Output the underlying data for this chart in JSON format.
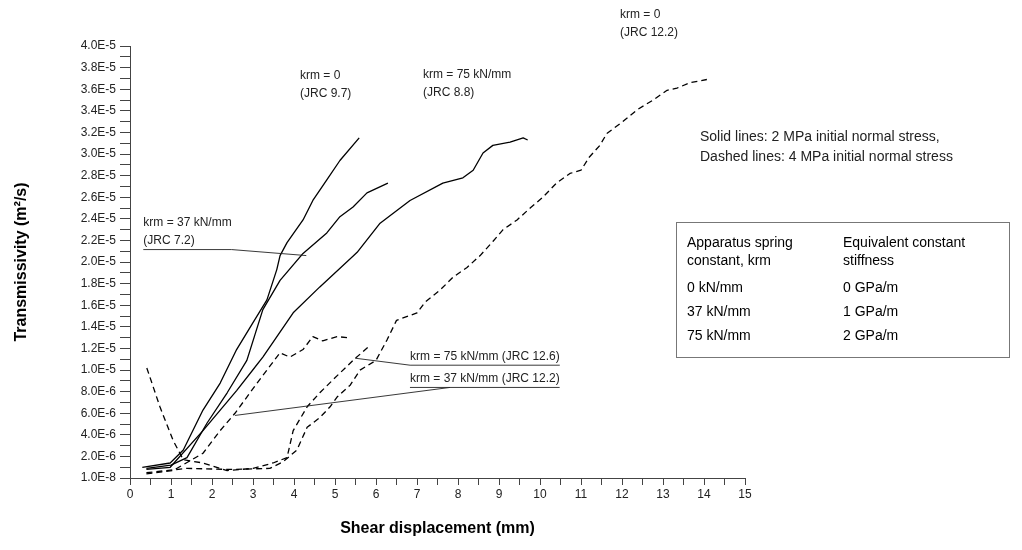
{
  "chart_data": {
    "type": "line",
    "xlabel": "Shear displacement (mm)",
    "ylabel": "Transmissivity (m²/s)",
    "xlim": [
      0,
      15
    ],
    "xticks": [
      0,
      {
        "value": 0.5,
        "label": null
      },
      1,
      {
        "value": 1.5,
        "label": null
      },
      2,
      {
        "value": 2.5,
        "label": null
      },
      3,
      {
        "value": 3.5,
        "label": null
      },
      4,
      {
        "value": 4.5,
        "label": null
      },
      5,
      {
        "value": 5.5,
        "label": null
      },
      6,
      {
        "value": 6.5,
        "label": null
      },
      7,
      {
        "value": 7.5,
        "label": null
      },
      8,
      {
        "value": 8.5,
        "label": null
      },
      9,
      {
        "value": 9.5,
        "label": null
      },
      10,
      {
        "value": 10.5,
        "label": null
      },
      11,
      {
        "value": 11.5,
        "label": null
      },
      12,
      {
        "value": 12.5,
        "label": null
      },
      13,
      {
        "value": 13.5,
        "label": null
      },
      14,
      {
        "value": 14.5,
        "label": null
      },
      15
    ],
    "ylim": [
      1e-08,
      4e-05
    ],
    "yticks": [
      {
        "value": 1e-08,
        "label": "1.0E-8"
      },
      {
        "value": 1e-06,
        "label": null
      },
      {
        "value": 2e-06,
        "label": "2.0E-6"
      },
      {
        "value": 3e-06,
        "label": null
      },
      {
        "value": 4e-06,
        "label": "4.0E-6"
      },
      {
        "value": 5e-06,
        "label": null
      },
      {
        "value": 6e-06,
        "label": "6.0E-6"
      },
      {
        "value": 7e-06,
        "label": null
      },
      {
        "value": 8e-06,
        "label": "8.0E-6"
      },
      {
        "value": 9e-06,
        "label": null
      },
      {
        "value": 1e-05,
        "label": "1.0E-5"
      },
      {
        "value": 1.1e-05,
        "label": null
      },
      {
        "value": 1.2e-05,
        "label": "1.2E-5"
      },
      {
        "value": 1.3e-05,
        "label": null
      },
      {
        "value": 1.4e-05,
        "label": "1.4E-5"
      },
      {
        "value": 1.5e-05,
        "label": null
      },
      {
        "value": 1.6e-05,
        "label": "1.6E-5"
      },
      {
        "value": 1.7e-05,
        "label": null
      },
      {
        "value": 1.8e-05,
        "label": "1.8E-5"
      },
      {
        "value": 1.9e-05,
        "label": null
      },
      {
        "value": 2e-05,
        "label": "2.0E-5"
      },
      {
        "value": 2.1e-05,
        "label": null
      },
      {
        "value": 2.2e-05,
        "label": "2.2E-5"
      },
      {
        "value": 2.3e-05,
        "label": null
      },
      {
        "value": 2.4e-05,
        "label": "2.4E-5"
      },
      {
        "value": 2.5e-05,
        "label": null
      },
      {
        "value": 2.6e-05,
        "label": "2.6E-5"
      },
      {
        "value": 2.7e-05,
        "label": null
      },
      {
        "value": 2.8e-05,
        "label": "2.8E-5"
      },
      {
        "value": 2.9e-05,
        "label": null
      },
      {
        "value": 3e-05,
        "label": "3.0E-5"
      },
      {
        "value": 3.1e-05,
        "label": null
      },
      {
        "value": 3.2e-05,
        "label": "3.2E-5"
      },
      {
        "value": 3.3e-05,
        "label": null
      },
      {
        "value": 3.4e-05,
        "label": "3.4E-5"
      },
      {
        "value": 3.5e-05,
        "label": null
      },
      {
        "value": 3.6e-05,
        "label": "3.6E-5"
      },
      {
        "value": 3.7e-05,
        "label": null
      },
      {
        "value": 3.8e-05,
        "label": "3.8E-5"
      },
      {
        "value": 3.9e-05,
        "label": null
      },
      {
        "value": 4e-05,
        "label": "4.0E-5"
      }
    ],
    "grid": false,
    "legend": false,
    "marker": "none",
    "series": [
      {
        "color": "#000000",
        "line_style": "solid",
        "x": [
          0.3,
          0.98,
          1.3,
          1.78,
          2.2,
          2.6,
          3.0,
          3.34,
          3.58,
          3.66,
          3.83,
          4.22,
          4.46,
          4.8,
          5.12,
          5.59
        ],
        "values": [
          1e-06,
          1.4e-06,
          2.6e-06,
          6.3e-06,
          8.8e-06,
          1.19e-05,
          1.44e-05,
          1.65e-05,
          1.93e-05,
          2.06e-05,
          2.18e-05,
          2.39e-05,
          2.57e-05,
          2.76e-05,
          2.94e-05,
          3.15e-05
        ]
      },
      {
        "color": "#000000",
        "line_style": "solid",
        "x": [
          0.4,
          1.0,
          1.39,
          1.88,
          2.37,
          2.85,
          3.24,
          3.66,
          4.22,
          4.8,
          5.12,
          5.44,
          5.78,
          6.29
        ],
        "values": [
          9e-07,
          1.2e-06,
          1.9e-06,
          5.1e-06,
          7.9e-06,
          1.09e-05,
          1.56e-05,
          1.83e-05,
          2.08e-05,
          2.27e-05,
          2.42e-05,
          2.51e-05,
          2.64e-05,
          2.73e-05
        ]
      },
      {
        "color": "#000000",
        "line_style": "solid",
        "x": [
          0.4,
          0.98,
          1.78,
          2.6,
          3.24,
          3.98,
          4.63,
          5.54,
          6.1,
          6.83,
          7.63,
          8.12,
          8.37,
          8.61,
          8.85,
          9.27,
          9.59,
          9.7
        ],
        "values": [
          8e-07,
          1e-06,
          4.4e-06,
          8.1e-06,
          1.12e-05,
          1.53e-05,
          1.77e-05,
          2.09e-05,
          2.36e-05,
          2.57e-05,
          2.73e-05,
          2.78e-05,
          2.85e-05,
          3.01e-05,
          3.08e-05,
          3.11e-05,
          3.15e-05,
          3.13e-05
        ]
      },
      {
        "color": "#000000",
        "line_style": "dashed",
        "x": [
          0.4,
          1.39,
          2.44,
          3.41,
          3.73,
          4.07,
          4.32,
          4.63,
          4.88,
          5.05,
          5.37,
          5.61,
          6.0,
          6.27,
          6.5,
          7.0,
          7.2,
          7.56,
          7.88,
          8.22,
          8.54,
          8.85,
          9.1,
          9.44,
          9.76,
          10.07,
          10.4,
          10.73,
          11.0,
          11.2,
          11.46,
          11.63,
          12.02,
          12.37,
          12.76,
          13.1,
          13.34,
          13.66,
          14.07
        ],
        "values": [
          5e-07,
          9e-07,
          8e-07,
          9e-07,
          1.5e-06,
          2.6e-06,
          4.7e-06,
          5.6e-06,
          6.6e-06,
          7.5e-06,
          8.6e-06,
          1e-05,
          1.09e-05,
          1.28e-05,
          1.46e-05,
          1.53e-05,
          1.63e-05,
          1.74e-05,
          1.86e-05,
          1.95e-05,
          2.06e-05,
          2.19e-05,
          2.3e-05,
          2.39e-05,
          2.5e-05,
          2.6e-05,
          2.73e-05,
          2.82e-05,
          2.85e-05,
          2.97e-05,
          3.08e-05,
          3.19e-05,
          3.3e-05,
          3.41e-05,
          3.5e-05,
          3.59e-05,
          3.61e-05,
          3.66e-05,
          3.69e-05
        ]
      },
      {
        "color": "#000000",
        "line_style": "dashed",
        "x": [
          0.41,
          0.73,
          1.05,
          1.3,
          1.78,
          2.37,
          3.0,
          3.49,
          3.83,
          3.98,
          4.32,
          4.63,
          4.95,
          5.44,
          5.8
        ],
        "values": [
          1.02e-05,
          6.6e-06,
          3.5e-06,
          1.7e-06,
          1.4e-06,
          7e-07,
          9e-07,
          1.4e-06,
          1.9e-06,
          4.4e-06,
          6.6e-06,
          7.9e-06,
          9.1e-06,
          1.09e-05,
          1.21e-05
        ]
      },
      {
        "color": "#000000",
        "line_style": "dashed",
        "x": [
          0.4,
          1.05,
          1.78,
          2.2,
          2.56,
          2.85,
          3.1,
          3.34,
          3.66,
          3.9,
          4.22,
          4.46,
          4.7,
          5.05,
          5.3
        ],
        "values": [
          4e-07,
          7e-07,
          2.3e-06,
          4.4e-06,
          6e-06,
          7.5e-06,
          8.8e-06,
          1e-05,
          1.16e-05,
          1.12e-05,
          1.19e-05,
          1.31e-05,
          1.27e-05,
          1.31e-05,
          1.3e-05
        ]
      }
    ],
    "annotations": [
      "krm = 0\n(JRC 9.7)",
      "krm = 75 kN/mm\n(JRC 8.8)",
      "krm = 0\n(JRC 12.2)",
      {
        "text": "krm = 37 kN/mm\n(JRC 7.2)",
        "x": 4.3,
        "y": 2.06e-05
      },
      {
        "text": "krm = 75 kN/mm (JRC 12.6)",
        "x": 5.49,
        "y": 1.11e-05
      },
      {
        "text": "krm = 37 kN/mm (JRC 12.2)",
        "x": 2.56,
        "y": 5.8e-06
      },
      "Solid lines: 2 MPa initial normal stress,\nDashed lines: 4 MPa initial normal stress",
      "Apparatus spring\nconstant, krm",
      "Equivalent constant\nstiffness",
      "0 kN/mm",
      "0 GPa/m",
      "37 kN/mm",
      "1 GPa/m",
      "75 kN/mm",
      "2 GPa/m"
    ]
  }
}
